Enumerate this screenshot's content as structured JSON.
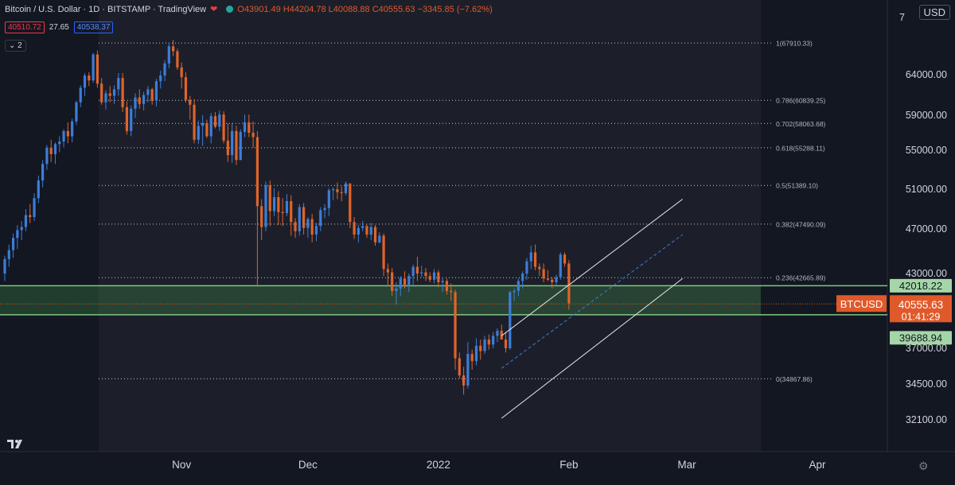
{
  "header": {
    "title": "Bitcoin / U.S. Dollar · 1D · BITSTAMP · TradingView",
    "ohlc": "O43901.49 H44204.78 L40088.88 C40555.63 −3345.85 (−7.62%)",
    "indicator_left": "40510.72",
    "indicator_mid": "27.65",
    "indicator_right": "40538.37",
    "collapse_label": "2",
    "currency": "USD"
  },
  "chart_data": {
    "type": "candlestick",
    "symbol": "BTCUSD",
    "y_ticks": [
      64000,
      59000,
      55000,
      51000,
      47000,
      43000,
      37000,
      34500,
      32100
    ],
    "y_tick_labels": [
      "64000.00",
      "59000.00",
      "55000.00",
      "51000.00",
      "47000.00",
      "43000.00",
      "37000.00",
      "34500.00",
      "32100.00"
    ],
    "top_partial_label": "7",
    "x_labels": [
      "Nov",
      "Dec",
      "2022",
      "Feb",
      "Mar",
      "Apr"
    ],
    "x_label_dates": [
      "2021-11-01",
      "2021-12-01",
      "2022-01-01",
      "2022-02-01",
      "2022-03-01",
      "2022-04-01"
    ],
    "fibonacci": [
      {
        "level": "1",
        "price": 67910.33,
        "label": "1(67910.33)"
      },
      {
        "level": "0.786",
        "price": 60839.25,
        "label": "0.786(60839.25)"
      },
      {
        "level": "0.702",
        "price": 58063.68,
        "label": "0.702(58063.68)"
      },
      {
        "level": "0.618",
        "price": 55288.11,
        "label": "0.618(55288.11)"
      },
      {
        "level": "0.5",
        "price": 51389.1,
        "label": "0.5(51389.10)"
      },
      {
        "level": "0.382",
        "price": 47490.09,
        "label": "0.382(47490.09)"
      },
      {
        "level": "0.236",
        "price": 42665.89,
        "label": "0.236(42665.89)"
      },
      {
        "level": "0",
        "price": 34867.86,
        "label": "0(34867.86)"
      }
    ],
    "zone": {
      "top": 42018.22,
      "bottom": 39688.94,
      "top_label": "42018.22",
      "bottom_label": "39688.94"
    },
    "last_price": {
      "price": 40555.63,
      "label": "40555.63",
      "countdown": "01:41:29",
      "tag": "BTCUSD"
    },
    "channel": {
      "upper": [
        [
          "2022-01-16",
          38000
        ],
        [
          "2022-02-28",
          50000
        ]
      ],
      "middle": [
        [
          "2022-01-16",
          35600
        ],
        [
          "2022-02-28",
          46500
        ]
      ],
      "lower": [
        [
          "2022-01-16",
          32200
        ],
        [
          "2022-02-28",
          42600
        ]
      ]
    },
    "candles_start": "2021-09-20",
    "candles": [
      [
        43000,
        44600,
        42400,
        44300
      ],
      [
        44300,
        45600,
        43600,
        45100
      ],
      [
        45100,
        46600,
        44400,
        46200
      ],
      [
        46200,
        47400,
        45200,
        46900
      ],
      [
        46900,
        47800,
        46000,
        47200
      ],
      [
        47200,
        49000,
        46800,
        48400
      ],
      [
        48400,
        49500,
        47600,
        48200
      ],
      [
        48200,
        50600,
        47800,
        50100
      ],
      [
        50100,
        52400,
        49600,
        51900
      ],
      [
        51900,
        54000,
        51200,
        53600
      ],
      [
        53600,
        55600,
        53000,
        55300
      ],
      [
        55300,
        56200,
        53800,
        54600
      ],
      [
        54600,
        55900,
        53600,
        55700
      ],
      [
        55700,
        56600,
        54800,
        56000
      ],
      [
        56000,
        57400,
        55300,
        57200
      ],
      [
        57200,
        58200,
        55800,
        56600
      ],
      [
        56600,
        58600,
        55900,
        58300
      ],
      [
        58300,
        60800,
        57900,
        60600
      ],
      [
        60600,
        62700,
        60000,
        62400
      ],
      [
        62400,
        64200,
        61400,
        63900
      ],
      [
        63900,
        64300,
        62600,
        63300
      ],
      [
        63300,
        66700,
        63000,
        66500
      ],
      [
        66500,
        67000,
        62400,
        62900
      ],
      [
        62900,
        63600,
        60300,
        60600
      ],
      [
        60600,
        62100,
        59700,
        61700
      ],
      [
        61700,
        62600,
        60600,
        61400
      ],
      [
        61400,
        62700,
        60400,
        62200
      ],
      [
        62200,
        64200,
        61400,
        63600
      ],
      [
        63600,
        64200,
        59400,
        60000
      ],
      [
        60000,
        60700,
        56800,
        57200
      ],
      [
        57200,
        60200,
        56600,
        59800
      ],
      [
        59800,
        61700,
        58700,
        61200
      ],
      [
        61200,
        62200,
        59800,
        60400
      ],
      [
        60400,
        61900,
        59600,
        61500
      ],
      [
        61500,
        62600,
        60600,
        62200
      ],
      [
        62200,
        62400,
        60300,
        60800
      ],
      [
        60800,
        63500,
        60100,
        63200
      ],
      [
        63200,
        64500,
        62300,
        63900
      ],
      [
        63900,
        65800,
        63200,
        65400
      ],
      [
        65400,
        68000,
        64800,
        67500
      ],
      [
        67500,
        68300,
        66300,
        66900
      ],
      [
        66900,
        67200,
        64600,
        64900
      ],
      [
        64900,
        65500,
        62300,
        63700
      ],
      [
        63700,
        64300,
        60600,
        60900
      ],
      [
        60900,
        61400,
        58500,
        60300
      ],
      [
        60300,
        61000,
        55800,
        56200
      ],
      [
        56200,
        58400,
        55700,
        57800
      ],
      [
        57800,
        59000,
        55500,
        58100
      ],
      [
        58100,
        58500,
        56400,
        56600
      ],
      [
        56600,
        59300,
        55800,
        58900
      ],
      [
        58900,
        59400,
        57500,
        57700
      ],
      [
        57700,
        59600,
        57200,
        59100
      ],
      [
        59100,
        59500,
        55800,
        56100
      ],
      [
        56100,
        58100,
        53800,
        54500
      ],
      [
        54500,
        58100,
        53700,
        57200
      ],
      [
        57200,
        57800,
        53500,
        54000
      ],
      [
        54000,
        57400,
        54000,
        57100
      ],
      [
        57100,
        59100,
        56500,
        58200
      ],
      [
        58200,
        59100,
        56500,
        57000
      ],
      [
        57000,
        58300,
        55300,
        56500
      ],
      [
        56500,
        57200,
        42100,
        49300
      ],
      [
        49300,
        50000,
        46000,
        47200
      ],
      [
        47200,
        51800,
        46800,
        51400
      ],
      [
        51400,
        51900,
        47300,
        48800
      ],
      [
        48800,
        51100,
        48300,
        50200
      ],
      [
        50200,
        50800,
        47400,
        48700
      ],
      [
        48700,
        50100,
        47300,
        48600
      ],
      [
        48600,
        50500,
        48300,
        49800
      ],
      [
        49800,
        50400,
        46400,
        47700
      ],
      [
        47700,
        48100,
        46200,
        46800
      ],
      [
        46800,
        49500,
        46400,
        49200
      ],
      [
        49200,
        49600,
        46500,
        47100
      ],
      [
        47100,
        48200,
        46200,
        48000
      ],
      [
        48000,
        48500,
        45800,
        46500
      ],
      [
        46500,
        47600,
        45900,
        47300
      ],
      [
        47300,
        49200,
        46800,
        48900
      ],
      [
        48900,
        49500,
        48100,
        49100
      ],
      [
        49100,
        51100,
        48300,
        50900
      ],
      [
        50900,
        51200,
        49900,
        51000
      ],
      [
        51000,
        51700,
        50000,
        50700
      ],
      [
        50700,
        51300,
        49800,
        50600
      ],
      [
        50600,
        51800,
        50400,
        51600
      ],
      [
        51600,
        51500,
        47100,
        47700
      ],
      [
        47700,
        48200,
        46100,
        46500
      ],
      [
        46500,
        47400,
        45800,
        47100
      ],
      [
        47100,
        47800,
        46800,
        47300
      ],
      [
        47300,
        47500,
        46200,
        46500
      ],
      [
        46500,
        47600,
        46000,
        47200
      ],
      [
        47200,
        47400,
        45500,
        45800
      ],
      [
        45800,
        46700,
        45700,
        46400
      ],
      [
        46400,
        46600,
        42800,
        43400
      ],
      [
        43400,
        43900,
        42000,
        43100
      ],
      [
        43100,
        43500,
        41200,
        41600
      ],
      [
        41600,
        42300,
        40500,
        41800
      ],
      [
        41800,
        42800,
        41200,
        42600
      ],
      [
        42600,
        43200,
        41800,
        42100
      ],
      [
        42100,
        43000,
        41500,
        42800
      ],
      [
        42800,
        43800,
        42100,
        43600
      ],
      [
        43600,
        44500,
        42400,
        43000
      ],
      [
        43000,
        43700,
        42700,
        43100
      ],
      [
        43100,
        43500,
        42400,
        42800
      ],
      [
        42800,
        43100,
        42300,
        42500
      ],
      [
        42500,
        43400,
        42200,
        43100
      ],
      [
        43100,
        43300,
        41900,
        42300
      ],
      [
        42300,
        42700,
        41500,
        42400
      ],
      [
        42400,
        42600,
        41300,
        41600
      ],
      [
        41600,
        42200,
        40800,
        41500
      ],
      [
        41500,
        41700,
        35500,
        36300
      ],
      [
        36300,
        36700,
        34900,
        35100
      ],
      [
        35100,
        35700,
        33800,
        34400
      ],
      [
        34400,
        37500,
        34200,
        36600
      ],
      [
        36600,
        36900,
        35500,
        36100
      ],
      [
        36100,
        37800,
        35800,
        37200
      ],
      [
        37200,
        37700,
        36200,
        36800
      ],
      [
        36800,
        38000,
        36600,
        37700
      ],
      [
        37700,
        38100,
        36900,
        37300
      ],
      [
        37300,
        38300,
        37000,
        38000
      ],
      [
        38000,
        38600,
        37500,
        38400
      ],
      [
        38400,
        38900,
        37900,
        37700
      ],
      [
        37700,
        38300,
        36700,
        37000
      ],
      [
        37000,
        41600,
        36900,
        41500
      ],
      [
        41500,
        41800,
        40800,
        41600
      ],
      [
        41600,
        42600,
        41200,
        42400
      ],
      [
        42400,
        43200,
        41800,
        43000
      ],
      [
        43000,
        44400,
        42500,
        44100
      ],
      [
        44100,
        45500,
        43400,
        44900
      ],
      [
        44900,
        45600,
        43300,
        43600
      ],
      [
        43600,
        43900,
        42800,
        43400
      ],
      [
        43400,
        43900,
        42300,
        42600
      ],
      [
        42600,
        43300,
        42400,
        42500
      ],
      [
        42500,
        42700,
        41800,
        42300
      ],
      [
        42300,
        42900,
        42100,
        42700
      ],
      [
        42700,
        44900,
        42500,
        44700
      ],
      [
        44700,
        44900,
        43600,
        43900
      ],
      [
        43900,
        44200,
        40100,
        40600
      ]
    ]
  }
}
